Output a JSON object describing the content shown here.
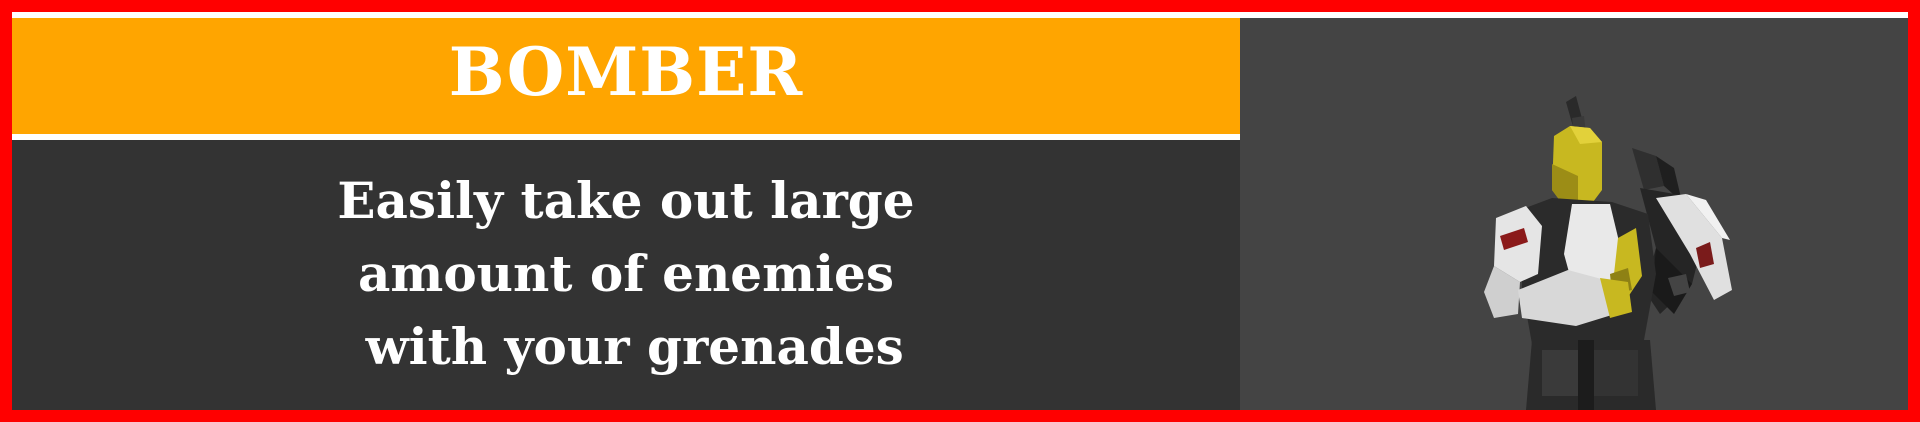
{
  "card": {
    "title": "BOMBER",
    "description_lines": [
      "Easily take out large",
      "amount of enemies",
      " with your grenades"
    ]
  },
  "colors": {
    "border": "#ff0000",
    "title_bar": "#ffa500",
    "description_bg": "#333333",
    "preview_bg": "#444444",
    "text": "#ffffff"
  },
  "icons": {
    "character": "bomber-character-icon"
  }
}
